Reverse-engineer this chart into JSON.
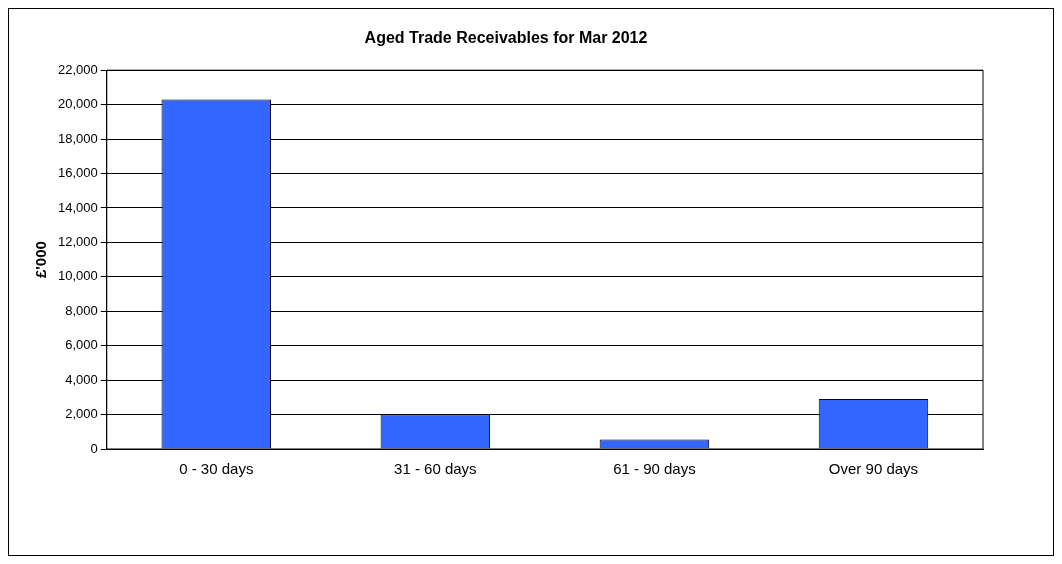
{
  "chart_data": {
    "type": "bar",
    "title": "Aged Trade Receivables for Mar 2012",
    "ylabel": "£'000",
    "categories": [
      "0 - 30 days",
      "31 - 60 days",
      "61 - 90 days",
      "Over 90 days"
    ],
    "values": [
      20300,
      2000,
      550,
      2900
    ],
    "color": "#3366ff",
    "ylim": [
      0,
      22000
    ],
    "yticks": [
      0,
      {
        "value": 2000,
        "label": "2,000"
      },
      {
        "value": 4000,
        "label": "4,000"
      },
      {
        "value": 6000,
        "label": "6,000"
      },
      {
        "value": 8000,
        "label": "8,000"
      },
      {
        "value": 10000,
        "label": "10,000"
      },
      {
        "value": 12000,
        "label": "12,000"
      },
      {
        "value": 14000,
        "label": "14,000"
      },
      {
        "value": 16000,
        "label": "16,000"
      },
      {
        "value": 18000,
        "label": "18,000"
      },
      {
        "value": 20000,
        "label": "20,000"
      },
      {
        "value": 22000,
        "label": "22,000"
      }
    ],
    "grid": "y",
    "legend": false
  }
}
